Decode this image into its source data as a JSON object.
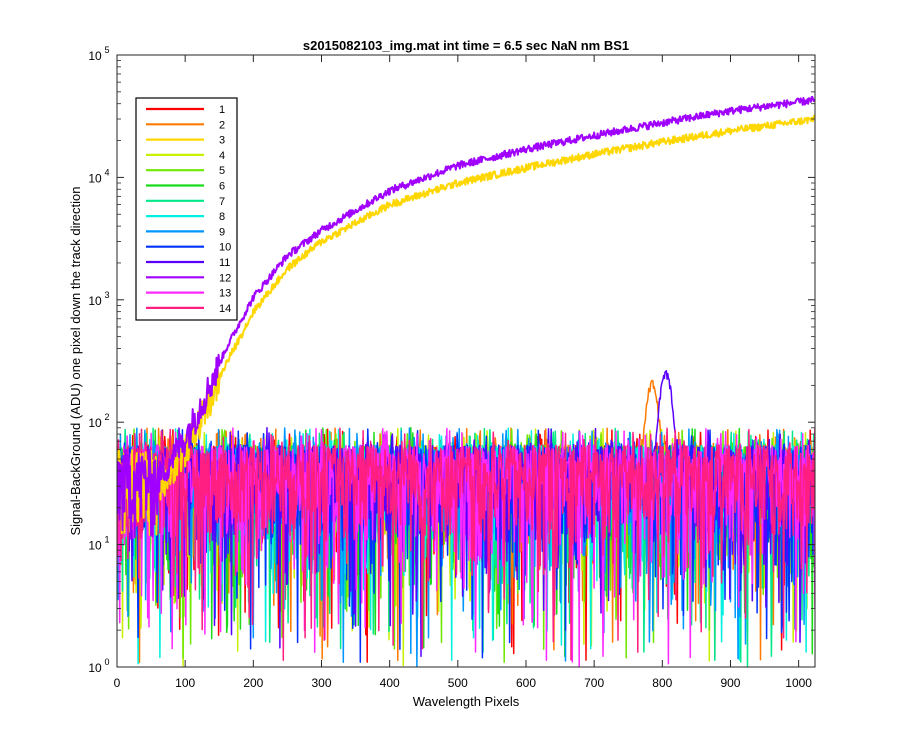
{
  "chart_data": {
    "type": "line",
    "title": "s2015082103_img.mat int time = 6.5 sec  NaN nm BS1",
    "xlabel": "Wavelength Pixels",
    "ylabel": "Signal-BackGround (ADU) one pixel down the track direction",
    "xlim": [
      0,
      1024
    ],
    "ylim": [
      1,
      100000
    ],
    "yscale": "log",
    "grid": false,
    "legend_position": "top-left",
    "x_ticks": [
      0,
      100,
      200,
      300,
      400,
      500,
      600,
      700,
      800,
      900,
      1000
    ],
    "y_ticks": [
      {
        "base": "10",
        "exp": "0"
      },
      {
        "base": "10",
        "exp": "1"
      },
      {
        "base": "10",
        "exp": "2"
      },
      {
        "base": "10",
        "exp": "3"
      },
      {
        "base": "10",
        "exp": "4"
      },
      {
        "base": "10",
        "exp": "5"
      }
    ],
    "series": [
      {
        "name": "1",
        "color": "#ff0000",
        "kind": "noise"
      },
      {
        "name": "2",
        "color": "#ff7a00",
        "kind": "noise",
        "peak_x": 785,
        "peak_y": 220
      },
      {
        "name": "3",
        "color": "#ffd700",
        "kind": "curve",
        "x": [
          60,
          100,
          130,
          160,
          200,
          250,
          300,
          400,
          500,
          600,
          700,
          800,
          900,
          1024
        ],
        "y": [
          30,
          60,
          130,
          300,
          800,
          1800,
          3000,
          6000,
          9000,
          12000,
          15500,
          19500,
          24000,
          30000
        ]
      },
      {
        "name": "4",
        "color": "#c8f000",
        "kind": "noise"
      },
      {
        "name": "5",
        "color": "#6ee800",
        "kind": "noise"
      },
      {
        "name": "6",
        "color": "#1adc1a",
        "kind": "noise"
      },
      {
        "name": "7",
        "color": "#00e887",
        "kind": "noise"
      },
      {
        "name": "8",
        "color": "#00f0e0",
        "kind": "noise"
      },
      {
        "name": "9",
        "color": "#0096ff",
        "kind": "noise"
      },
      {
        "name": "10",
        "color": "#0032ff",
        "kind": "noise"
      },
      {
        "name": "11",
        "color": "#5a00ff",
        "kind": "noise",
        "peak_x": 805,
        "peak_y": 270
      },
      {
        "name": "12",
        "color": "#a000ff",
        "kind": "curve",
        "x": [
          60,
          100,
          130,
          160,
          200,
          250,
          300,
          400,
          500,
          600,
          700,
          800,
          900,
          1024
        ],
        "y": [
          35,
          75,
          170,
          400,
          1050,
          2300,
          3700,
          7800,
          12500,
          17000,
          22000,
          28000,
          35000,
          43000
        ]
      },
      {
        "name": "13",
        "color": "#ff28ff",
        "kind": "noise"
      },
      {
        "name": "14",
        "color": "#ff1e82",
        "kind": "noise"
      }
    ]
  }
}
